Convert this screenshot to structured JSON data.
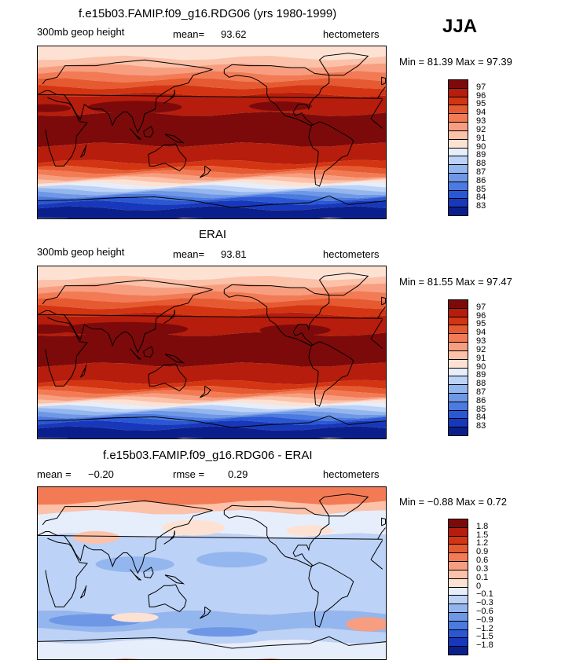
{
  "season": "JJA",
  "panels": [
    {
      "title": "f.e15b03.FAMIP.f09_g16.RDG06 (yrs 1980-1999)",
      "variable": "300mb geop height",
      "mean_label": "mean=",
      "mean_value": "93.62",
      "units": "hectometers",
      "minmax": "Min =  81.39 Max =  97.39",
      "min": 81.39,
      "max": 97.39,
      "legend_ticks": [
        "97",
        "96",
        "95",
        "94",
        "93",
        "92",
        "91",
        "90",
        "89",
        "88",
        "87",
        "86",
        "85",
        "84",
        "83"
      ],
      "legend_colors": [
        "#7d0a0a",
        "#b61d0c",
        "#d33513",
        "#e65a31",
        "#f27b55",
        "#f89e80",
        "#fcc1a9",
        "#fde2d4",
        "#e6eefc",
        "#bcd2f6",
        "#94b6ef",
        "#6e98e6",
        "#4b7ae0",
        "#2a58d4",
        "#1838bb",
        "#0b1f8c"
      ]
    },
    {
      "title": "ERAI",
      "variable": "300mb geop height",
      "mean_label": "mean=",
      "mean_value": "93.81",
      "units": "hectometers",
      "minmax": "Min =  81.55 Max =  97.47",
      "min": 81.55,
      "max": 97.47,
      "legend_ticks": [
        "97",
        "96",
        "95",
        "94",
        "93",
        "92",
        "91",
        "90",
        "89",
        "88",
        "87",
        "86",
        "85",
        "84",
        "83"
      ],
      "legend_colors": [
        "#7d0a0a",
        "#b61d0c",
        "#d33513",
        "#e65a31",
        "#f27b55",
        "#f89e80",
        "#fcc1a9",
        "#fde2d4",
        "#e6eefc",
        "#bcd2f6",
        "#94b6ef",
        "#6e98e6",
        "#4b7ae0",
        "#2a58d4",
        "#1838bb",
        "#0b1f8c"
      ]
    },
    {
      "title": "f.e15b03.FAMIP.f09_g16.RDG06 - ERAI",
      "mean_label": "mean =",
      "mean_value": "−0.20",
      "rmse_label": "rmse =",
      "rmse_value": "0.29",
      "units": "hectometers",
      "minmax": "Min =  −0.88 Max =   0.72",
      "min": -0.88,
      "max": 0.72,
      "legend_ticks": [
        "1.8",
        "1.5",
        "1.2",
        "0.9",
        "0.6",
        "0.3",
        "0.1",
        "0",
        "−0.1",
        "−0.3",
        "−0.6",
        "−0.9",
        "−1.2",
        "−1.5",
        "−1.8"
      ],
      "legend_colors": [
        "#7d0a0a",
        "#b61d0c",
        "#d33513",
        "#e65a31",
        "#f27b55",
        "#f89e80",
        "#fcc1a9",
        "#fde2d4",
        "#e6eefc",
        "#bcd2f6",
        "#94b6ef",
        "#6e98e6",
        "#4b7ae0",
        "#2a58d4",
        "#1838bb",
        "#0b1f8c"
      ]
    }
  ]
}
